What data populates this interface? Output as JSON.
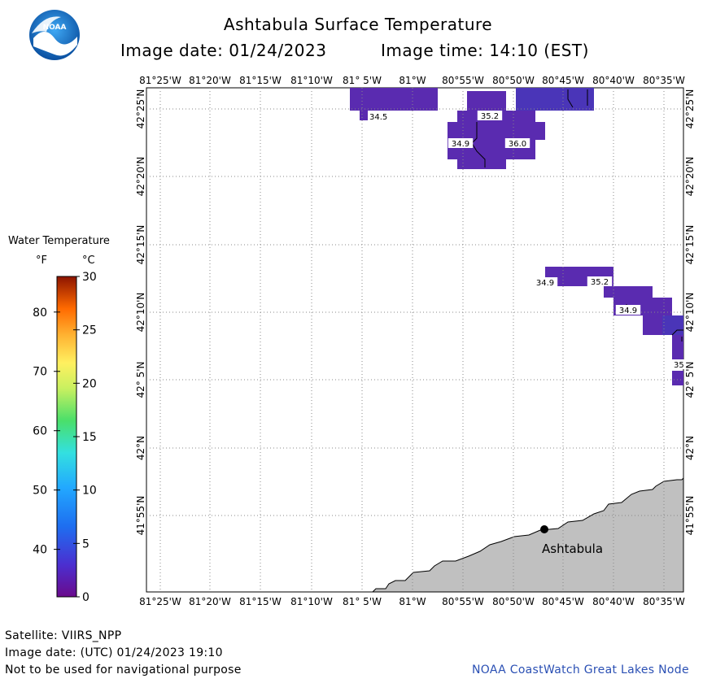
{
  "header": {
    "title": "Ashtabula Surface Temperature",
    "image_date": "Image date: 01/24/2023",
    "image_time": "Image time: 14:10 (EST)"
  },
  "map": {
    "lon_labels": [
      "81°25'W",
      "81°20'W",
      "81°15'W",
      "81°10'W",
      "81° 5'W",
      "81°W",
      "80°55'W",
      "80°50'W",
      "80°45'W",
      "80°40'W",
      "80°35'W"
    ],
    "lat_labels": [
      "42°25'N",
      "42°20'N",
      "42°15'N",
      "42°10'N",
      "42° 5'N",
      "42°N",
      "41°55'N"
    ],
    "city": "Ashtabula",
    "temperature_labels": [
      "34.5",
      "35.2",
      "34.9",
      "36.0",
      "34.9",
      "35.2",
      "34.9",
      "35"
    ],
    "land_color": "#c0c0c0",
    "water_data_color": "#5a2bb0",
    "water_data_color_alt": "#4a35b8"
  },
  "legend": {
    "title": "Water Temperature",
    "unit_f": "°F",
    "unit_c": "°C",
    "f_ticks": [
      "80",
      "70",
      "60",
      "50",
      "40"
    ],
    "c_ticks": [
      "30",
      "25",
      "20",
      "15",
      "10",
      "5",
      "0"
    ]
  },
  "footer": {
    "satellite": "Satellite: VIIRS_NPP",
    "utc_date": "Image date: (UTC) 01/24/2023  19:10",
    "warning": "Not to be used for navigational purpose",
    "credit": "NOAA CoastWatch Great Lakes Node"
  }
}
